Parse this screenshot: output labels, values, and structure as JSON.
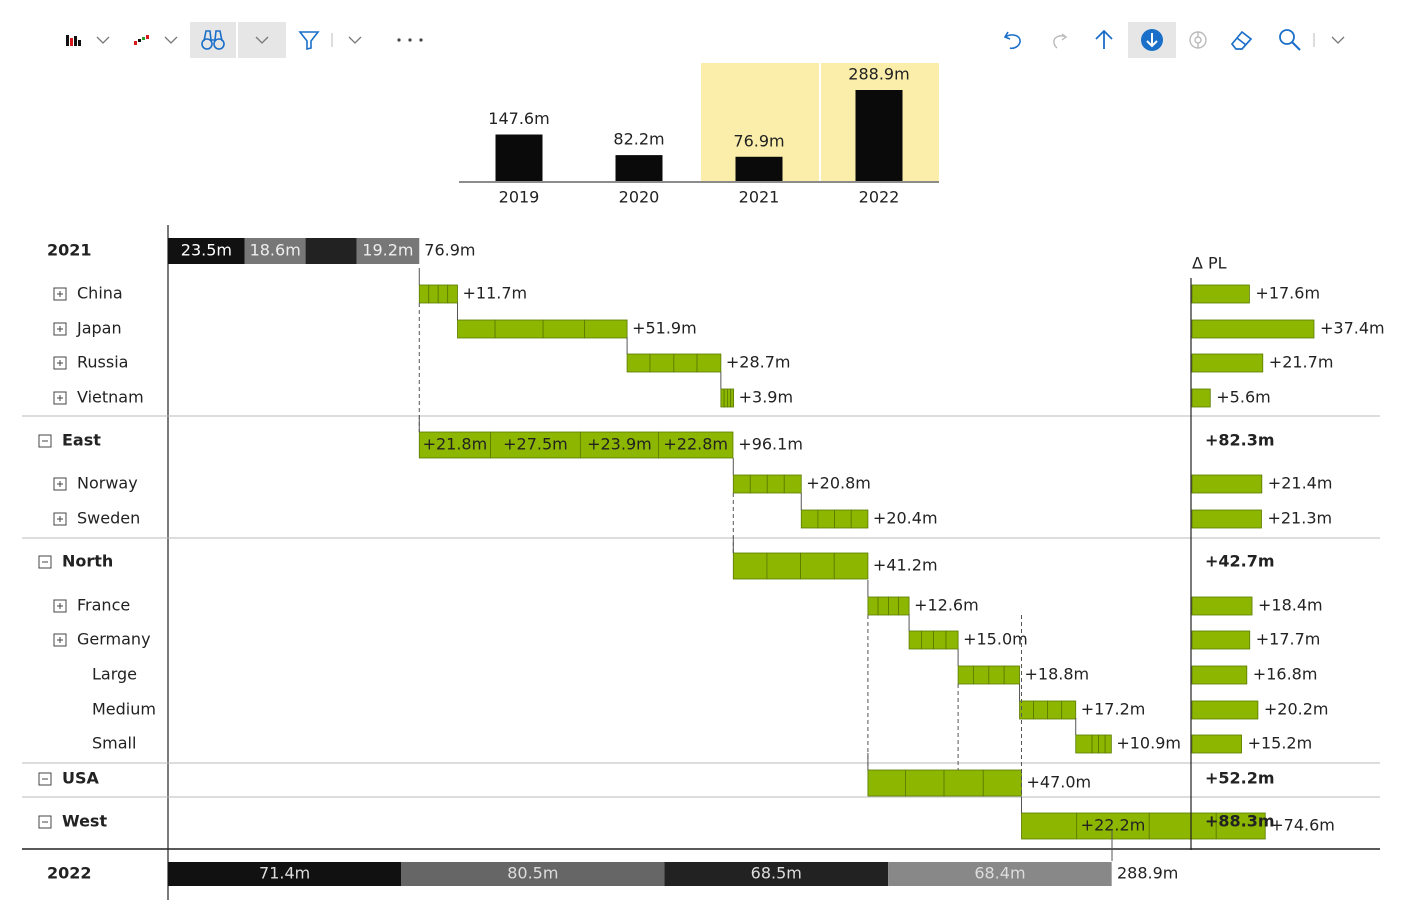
{
  "toolbar": {
    "left_icons": [
      "bar-chart-icon",
      "waterfall-chart-icon",
      "binoculars-icon",
      "filter-icon",
      "more-icon"
    ],
    "right_icons": [
      "undo-icon",
      "redo-icon",
      "arrow-up-icon",
      "arrow-down-circle-icon",
      "target-icon",
      "eraser-icon",
      "zoom-icon"
    ],
    "accent": "#1a6fc9"
  },
  "chart_data": {
    "type": "bar",
    "overview": {
      "categories": [
        "2019",
        "2020",
        "2021",
        "2022"
      ],
      "values": [
        147.6,
        82.2,
        76.9,
        288.9
      ],
      "value_labels": [
        "147.6m",
        "82.2m",
        "76.9m",
        "288.9m"
      ],
      "highlighted": [
        "2021",
        "2022"
      ],
      "highlight_color": "#faeeaa"
    },
    "waterfall": {
      "type": "waterfall",
      "unit": "m",
      "colors": {
        "delta": "#8db600",
        "delta_border": "#5a7a00",
        "total_dark": "#111111",
        "total_gray": "#777777"
      },
      "start": {
        "label": "2021",
        "total": 76.9,
        "total_label": "76.9m",
        "segments": [
          {
            "value": 23.5,
            "label": "23.5m"
          },
          {
            "value": 18.6,
            "label": "18.6m"
          },
          {
            "value": 15.6,
            "label": ""
          },
          {
            "value": 19.2,
            "label": "19.2m"
          }
        ]
      },
      "rows": [
        {
          "label": "China",
          "kind": "item",
          "expand": "plus",
          "value": 11.7,
          "label_value": "+11.7m",
          "segments": [
            2.9,
            2.9,
            2.9,
            3.0
          ],
          "seg_labels": [],
          "pl": 17.6,
          "pl_label": "+17.6m"
        },
        {
          "label": "Japan",
          "kind": "item",
          "expand": "plus",
          "value": 51.9,
          "label_value": "+51.9m",
          "segments": [
            11.5,
            14.7,
            12.7,
            13.0
          ],
          "seg_labels": [],
          "pl": 37.4,
          "pl_label": "+37.4m"
        },
        {
          "label": "Russia",
          "kind": "item",
          "expand": "plus",
          "value": 28.7,
          "label_value": "+28.7m",
          "segments": [
            7.0,
            7.3,
            7.1,
            7.3
          ],
          "seg_labels": [],
          "pl": 21.7,
          "pl_label": "+21.7m"
        },
        {
          "label": "Vietnam",
          "kind": "item",
          "expand": "plus",
          "value": 3.9,
          "label_value": "+3.9m",
          "segments": [
            1.0,
            1.0,
            1.0,
            0.9
          ],
          "seg_labels": [],
          "pl": 5.6,
          "pl_label": "+5.6m"
        },
        {
          "label": "East",
          "kind": "group",
          "expand": "minus",
          "value": 96.1,
          "label_value": "+96.1m",
          "segments": [
            21.8,
            27.5,
            23.9,
            22.8
          ],
          "seg_labels": [
            "+21.8m",
            "+27.5m",
            "+23.9m",
            "+22.8m"
          ],
          "pl": 82.3,
          "pl_label": "+82.3m"
        },
        {
          "label": "Norway",
          "kind": "item",
          "expand": "plus",
          "value": 20.8,
          "label_value": "+20.8m",
          "segments": [
            5.2,
            5.2,
            5.2,
            5.2
          ],
          "seg_labels": [],
          "pl": 21.4,
          "pl_label": "+21.4m"
        },
        {
          "label": "Sweden",
          "kind": "item",
          "expand": "plus",
          "value": 20.4,
          "label_value": "+20.4m",
          "segments": [
            5.1,
            5.1,
            5.1,
            5.1
          ],
          "seg_labels": [],
          "pl": 21.3,
          "pl_label": "+21.3m"
        },
        {
          "label": "North",
          "kind": "group",
          "expand": "minus",
          "value": 41.2,
          "label_value": "+41.2m",
          "segments": [
            10.3,
            10.3,
            10.3,
            10.3
          ],
          "seg_labels": [],
          "pl": 42.7,
          "pl_label": "+42.7m"
        },
        {
          "label": "France",
          "kind": "item",
          "expand": "plus",
          "value": 12.6,
          "label_value": "+12.6m",
          "segments": [
            3.1,
            3.2,
            3.1,
            3.2
          ],
          "seg_labels": [],
          "pl": 18.4,
          "pl_label": "+18.4m"
        },
        {
          "label": "Germany",
          "kind": "item",
          "expand": "plus",
          "value": 15.0,
          "label_value": "+15.0m",
          "segments": [
            3.8,
            3.7,
            3.8,
            3.7
          ],
          "seg_labels": [],
          "pl": 17.7,
          "pl_label": "+17.7m"
        },
        {
          "label": "Large",
          "kind": "sub",
          "expand": "",
          "value": 18.8,
          "label_value": "+18.8m",
          "segments": [
            4.7,
            4.7,
            4.7,
            4.7
          ],
          "seg_labels": [],
          "pl": 16.8,
          "pl_label": "+16.8m"
        },
        {
          "label": "Medium",
          "kind": "sub",
          "expand": "",
          "value": 17.2,
          "label_value": "+17.2m",
          "segments": [
            4.3,
            4.3,
            4.3,
            4.3
          ],
          "seg_labels": [],
          "pl": 20.2,
          "pl_label": "+20.2m"
        },
        {
          "label": "Small",
          "kind": "sub",
          "expand": "",
          "value": 10.9,
          "label_value": "+10.9m",
          "segments": [
            5.0,
            2.0,
            2.0,
            1.9
          ],
          "seg_labels": [],
          "pl": 15.2,
          "pl_label": "+15.2m"
        },
        {
          "label": "USA",
          "kind": "group",
          "expand": "minus",
          "value": 47.0,
          "label_value": "+47.0m",
          "segments": [
            11.5,
            11.8,
            12.0,
            11.7
          ],
          "seg_labels": [],
          "pl": 52.2,
          "pl_label": "+52.2m"
        },
        {
          "label": "West",
          "kind": "group",
          "expand": "minus",
          "value": 74.6,
          "label_value": "+74.6m",
          "segments": [
            16.9,
            22.2,
            20.5,
            15.0
          ],
          "seg_labels": [
            "",
            "+22.2m",
            "",
            ""
          ],
          "pl": 88.3,
          "pl_label": "+88.3m"
        }
      ],
      "end": {
        "label": "2022",
        "total": 288.9,
        "total_label": "288.9m",
        "segments": [
          {
            "value": 71.4,
            "label": "71.4m"
          },
          {
            "value": 80.5,
            "label": "80.5m"
          },
          {
            "value": 68.5,
            "label": "68.5m"
          },
          {
            "value": 68.4,
            "label": "68.4m"
          }
        ]
      },
      "pl_header": "Δ PL"
    }
  }
}
